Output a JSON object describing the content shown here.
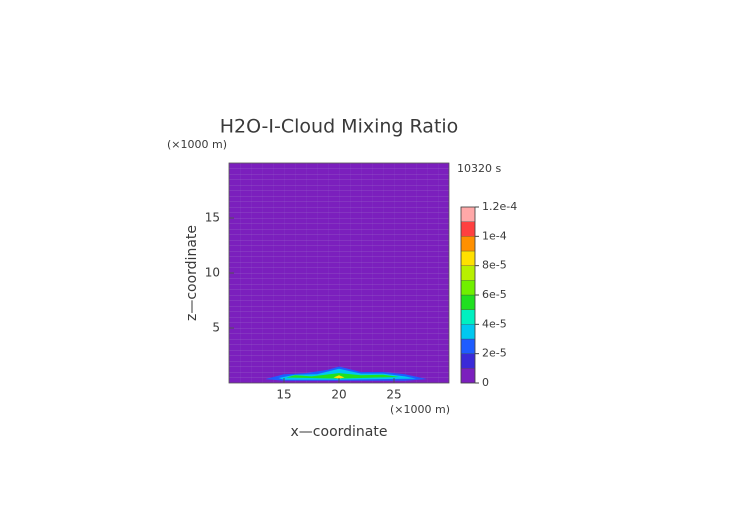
{
  "chart_data": {
    "type": "contour",
    "title": "H2O-I-Cloud Mixing Ratio",
    "time_label": "10320 s",
    "x_label": "x—coordinate",
    "y_label": "z—coordinate",
    "x_unit": "(×1000 m)",
    "y_unit": "(×1000 m)",
    "xlim": [
      10,
      30
    ],
    "ylim": [
      0,
      20
    ],
    "xticks": [
      15,
      20,
      25
    ],
    "yticks": [
      5,
      10,
      15
    ],
    "background_color": "#7b1fbd",
    "colorbar": {
      "clim": [
        0,
        0.00012
      ],
      "colors": [
        "#7b1fbd",
        "#3a2ad8",
        "#1e5cff",
        "#00c8f0",
        "#00f0c0",
        "#20e020",
        "#70f000",
        "#b8f000",
        "#ffe000",
        "#ff9000",
        "#ff4040",
        "#ffa8a8"
      ],
      "ticks": [
        0,
        {
          "value": 2e-05,
          "label": "2e-5"
        },
        {
          "value": 4e-05,
          "label": "4e-5"
        },
        {
          "value": 6e-05,
          "label": "6e-5"
        },
        {
          "value": 8e-05,
          "label": "8e-5"
        },
        {
          "value": 0.0001,
          "label": "1e-4"
        },
        {
          "value": 0.00012,
          "label": "1.2e-4"
        }
      ]
    },
    "contours": [
      {
        "level": 2.5e-05,
        "x": [
          13.3,
          15,
          17,
          19,
          20,
          22,
          24,
          26,
          28,
          26,
          15
        ],
        "y": [
          0.35,
          0.8,
          0.9,
          1.2,
          1.5,
          1.0,
          1.0,
          0.8,
          0.35,
          0.2,
          0.2
        ]
      },
      {
        "level": 3.5e-05,
        "x": [
          14.5,
          16,
          18,
          20,
          22,
          24,
          26,
          27,
          20,
          15
        ],
        "y": [
          0.45,
          0.75,
          0.8,
          1.3,
          0.85,
          0.85,
          0.6,
          0.4,
          0.3,
          0.3
        ]
      },
      {
        "level": 5.5e-05,
        "x": [
          15.2,
          16,
          17.5,
          20,
          22,
          24,
          25.5,
          20
        ],
        "y": [
          0.5,
          0.7,
          0.6,
          0.9,
          0.7,
          0.75,
          0.55,
          0.4
        ]
      },
      {
        "level": 8.5e-05,
        "x": [
          19.5,
          20,
          20.5,
          20
        ],
        "y": [
          0.5,
          0.7,
          0.5,
          0.4
        ]
      }
    ]
  }
}
